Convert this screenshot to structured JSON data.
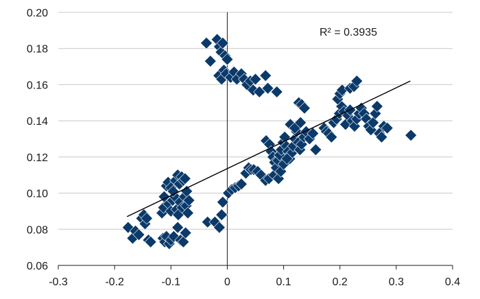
{
  "chart_data": {
    "type": "scatter",
    "title": "",
    "xlabel": "",
    "ylabel": "",
    "xlim": [
      -0.3,
      0.4
    ],
    "ylim": [
      0.06,
      0.2
    ],
    "x_ticks": [
      "-0.3",
      "-0.2",
      "-0.1",
      "0",
      "0.1",
      "0.2",
      "0.3",
      "0.4"
    ],
    "y_ticks": [
      "0.06",
      "0.08",
      "0.10",
      "0.12",
      "0.14",
      "0.16",
      "0.18",
      "0.20"
    ],
    "grid": "horizontal",
    "legend": "none",
    "marker_color": "#0b3a6a",
    "marker_shape": "diamond",
    "annotation": "R² = 0.3935",
    "trendline": {
      "x": [
        -0.178,
        0.325
      ],
      "y": [
        0.087,
        0.162
      ]
    },
    "points": [
      [
        -0.176,
        0.081
      ],
      [
        -0.168,
        0.075
      ],
      [
        -0.163,
        0.079
      ],
      [
        -0.157,
        0.077
      ],
      [
        -0.152,
        0.086
      ],
      [
        -0.148,
        0.088
      ],
      [
        -0.146,
        0.083
      ],
      [
        -0.143,
        0.086
      ],
      [
        -0.14,
        0.074
      ],
      [
        -0.136,
        0.073
      ],
      [
        -0.114,
        0.075
      ],
      [
        -0.111,
        0.073
      ],
      [
        -0.108,
        0.076
      ],
      [
        -0.103,
        0.072
      ],
      [
        -0.1,
        0.074
      ],
      [
        -0.095,
        0.076
      ],
      [
        -0.088,
        0.081
      ],
      [
        -0.083,
        0.074
      ],
      [
        -0.078,
        0.073
      ],
      [
        -0.074,
        0.078
      ],
      [
        -0.116,
        0.089
      ],
      [
        -0.113,
        0.092
      ],
      [
        -0.108,
        0.097
      ],
      [
        -0.104,
        0.094
      ],
      [
        -0.1,
        0.09
      ],
      [
        -0.097,
        0.096
      ],
      [
        -0.093,
        0.098
      ],
      [
        -0.09,
        0.091
      ],
      [
        -0.087,
        0.088
      ],
      [
        -0.084,
        0.095
      ],
      [
        -0.08,
        0.092
      ],
      [
        -0.076,
        0.098
      ],
      [
        -0.073,
        0.093
      ],
      [
        -0.07,
        0.089
      ],
      [
        -0.068,
        0.096
      ],
      [
        -0.112,
        0.098
      ],
      [
        -0.108,
        0.104
      ],
      [
        -0.105,
        0.106
      ],
      [
        -0.1,
        0.103
      ],
      [
        -0.096,
        0.101
      ],
      [
        -0.092,
        0.107
      ],
      [
        -0.088,
        0.11
      ],
      [
        -0.085,
        0.105
      ],
      [
        -0.081,
        0.109
      ],
      [
        -0.078,
        0.107
      ],
      [
        -0.075,
        0.108
      ],
      [
        -0.072,
        0.101
      ],
      [
        -0.037,
        0.183
      ],
      [
        -0.03,
        0.173
      ],
      [
        -0.018,
        0.185
      ],
      [
        -0.014,
        0.181
      ],
      [
        -0.011,
        0.178
      ],
      [
        -0.008,
        0.183
      ],
      [
        -0.004,
        0.176
      ],
      [
        0.0,
        0.174
      ],
      [
        -0.015,
        0.165
      ],
      [
        -0.01,
        0.163
      ],
      [
        -0.006,
        0.168
      ],
      [
        -0.002,
        0.166
      ],
      [
        0.006,
        0.164
      ],
      [
        0.012,
        0.167
      ],
      [
        0.017,
        0.163
      ],
      [
        0.025,
        0.166
      ],
      [
        0.03,
        0.163
      ],
      [
        0.035,
        0.16
      ],
      [
        0.041,
        0.162
      ],
      [
        0.046,
        0.157
      ],
      [
        0.05,
        0.163
      ],
      [
        0.057,
        0.156
      ],
      [
        0.068,
        0.165
      ],
      [
        0.072,
        0.158
      ],
      [
        0.088,
        0.156
      ],
      [
        -0.035,
        0.084
      ],
      [
        -0.022,
        0.084
      ],
      [
        -0.014,
        0.081
      ],
      [
        -0.01,
        0.088
      ],
      [
        -0.008,
        0.095
      ],
      [
        0.002,
        0.1
      ],
      [
        0.008,
        0.102
      ],
      [
        0.014,
        0.103
      ],
      [
        0.02,
        0.104
      ],
      [
        0.025,
        0.105
      ],
      [
        0.033,
        0.111
      ],
      [
        0.038,
        0.114
      ],
      [
        0.042,
        0.113
      ],
      [
        0.047,
        0.113
      ],
      [
        0.054,
        0.112
      ],
      [
        0.06,
        0.11
      ],
      [
        0.068,
        0.107
      ],
      [
        0.074,
        0.108
      ],
      [
        0.083,
        0.11
      ],
      [
        0.091,
        0.108
      ],
      [
        0.069,
        0.129
      ],
      [
        0.075,
        0.127
      ],
      [
        0.078,
        0.123
      ],
      [
        0.081,
        0.12
      ],
      [
        0.084,
        0.117
      ],
      [
        0.087,
        0.114
      ],
      [
        0.09,
        0.118
      ],
      [
        0.093,
        0.121
      ],
      [
        0.096,
        0.124
      ],
      [
        0.099,
        0.128
      ],
      [
        0.102,
        0.131
      ],
      [
        0.105,
        0.126
      ],
      [
        0.108,
        0.123
      ],
      [
        0.111,
        0.119
      ],
      [
        0.114,
        0.122
      ],
      [
        0.117,
        0.126
      ],
      [
        0.12,
        0.13
      ],
      [
        0.123,
        0.134
      ],
      [
        0.126,
        0.128
      ],
      [
        0.129,
        0.124
      ],
      [
        0.132,
        0.127
      ],
      [
        0.136,
        0.131
      ],
      [
        0.14,
        0.134
      ],
      [
        0.146,
        0.13
      ],
      [
        0.152,
        0.133
      ],
      [
        0.157,
        0.124
      ],
      [
        0.112,
        0.138
      ],
      [
        0.12,
        0.136
      ],
      [
        0.13,
        0.139
      ],
      [
        0.127,
        0.15
      ],
      [
        0.132,
        0.149
      ],
      [
        0.137,
        0.147
      ],
      [
        0.095,
        0.112
      ],
      [
        0.1,
        0.116
      ],
      [
        0.106,
        0.119
      ],
      [
        0.172,
        0.136
      ],
      [
        0.176,
        0.134
      ],
      [
        0.18,
        0.133
      ],
      [
        0.185,
        0.131
      ],
      [
        0.189,
        0.139
      ],
      [
        0.194,
        0.141
      ],
      [
        0.199,
        0.144
      ],
      [
        0.203,
        0.148
      ],
      [
        0.207,
        0.145
      ],
      [
        0.21,
        0.138
      ],
      [
        0.214,
        0.143
      ],
      [
        0.218,
        0.146
      ],
      [
        0.222,
        0.14
      ],
      [
        0.226,
        0.137
      ],
      [
        0.23,
        0.141
      ],
      [
        0.234,
        0.144
      ],
      [
        0.238,
        0.147
      ],
      [
        0.243,
        0.144
      ],
      [
        0.247,
        0.141
      ],
      [
        0.251,
        0.137
      ],
      [
        0.255,
        0.135
      ],
      [
        0.259,
        0.139
      ],
      [
        0.263,
        0.144
      ],
      [
        0.266,
        0.148
      ],
      [
        0.27,
        0.133
      ],
      [
        0.274,
        0.131
      ],
      [
        0.278,
        0.137
      ],
      [
        0.284,
        0.136
      ],
      [
        0.196,
        0.152
      ],
      [
        0.2,
        0.155
      ],
      [
        0.204,
        0.157
      ],
      [
        0.218,
        0.158
      ],
      [
        0.225,
        0.159
      ],
      [
        0.23,
        0.162
      ],
      [
        0.326,
        0.132
      ]
    ]
  }
}
